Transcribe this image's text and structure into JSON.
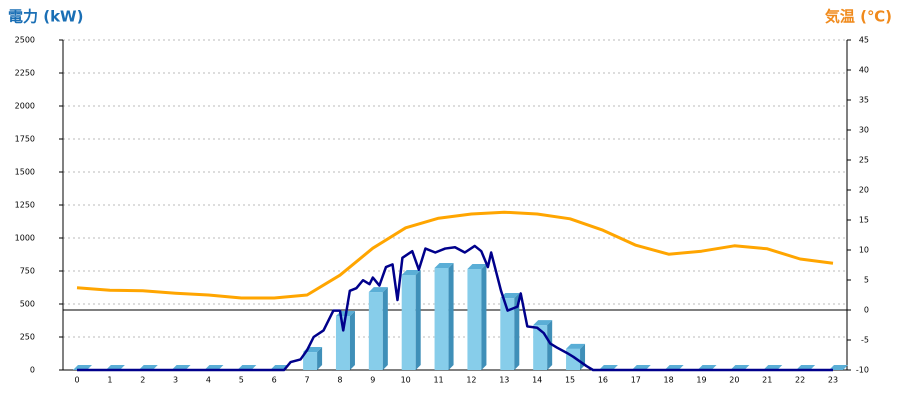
{
  "chart_data": {
    "type": "combo",
    "y_label": "電力 (kW)",
    "y2_label": "気温 (℃)",
    "categories": [
      "0",
      "1",
      "2",
      "3",
      "4",
      "5",
      "6",
      "7",
      "8",
      "9",
      "10",
      "11",
      "12",
      "13",
      "14",
      "15",
      "16",
      "17",
      "18",
      "19",
      "20",
      "21",
      "22",
      "23"
    ],
    "ylim": [
      0,
      2500
    ],
    "yticks": [
      0,
      250,
      500,
      750,
      1000,
      1250,
      1500,
      1750,
      2000,
      2250,
      2500
    ],
    "y2lim": [
      -10,
      45
    ],
    "y2ticks": [
      -10,
      -5,
      0,
      5,
      10,
      15,
      20,
      25,
      30,
      35,
      40,
      45
    ],
    "grid": true,
    "series": [
      {
        "type": "bar",
        "color": "#87cdea",
        "values": [
          0,
          0,
          0,
          0,
          0,
          0,
          0,
          136,
          409,
          590,
          720,
          773,
          765,
          545,
          340,
          160,
          0,
          0,
          0,
          0,
          0,
          0,
          0,
          0
        ]
      },
      {
        "type": "line",
        "color": "#00008b",
        "x": [
          0,
          6.3,
          6.5,
          6.8,
          7.0,
          7.2,
          7.5,
          7.8,
          8.0,
          8.1,
          8.3,
          8.5,
          8.7,
          8.9,
          9.0,
          9.2,
          9.4,
          9.6,
          9.75,
          9.9,
          10.2,
          10.4,
          10.6,
          10.9,
          11.2,
          11.5,
          11.8,
          12.1,
          12.3,
          12.5,
          12.6,
          12.9,
          13.1,
          13.4,
          13.5,
          13.7,
          14.0,
          14.2,
          14.4,
          14.6,
          14.9,
          15.1,
          15.5,
          15.7,
          23
        ],
        "values": [
          0,
          0,
          60,
          80,
          150,
          250,
          300,
          450,
          450,
          300,
          600,
          620,
          680,
          650,
          700,
          640,
          780,
          800,
          530,
          850,
          900,
          760,
          920,
          890,
          920,
          930,
          890,
          940,
          900,
          780,
          890,
          600,
          450,
          480,
          580,
          330,
          320,
          280,
          200,
          170,
          130,
          100,
          30,
          0,
          0
        ]
      },
      {
        "type": "line",
        "axis": "y2",
        "color": "#ffa500",
        "values": [
          3.7,
          3.3,
          3.2,
          2.8,
          2.5,
          2.0,
          2.0,
          2.5,
          5.8,
          10.3,
          13.7,
          15.3,
          16.0,
          16.3,
          16.0,
          15.2,
          13.3,
          10.8,
          9.3,
          9.8,
          10.7,
          10.2,
          8.5,
          7.8
        ]
      }
    ]
  }
}
